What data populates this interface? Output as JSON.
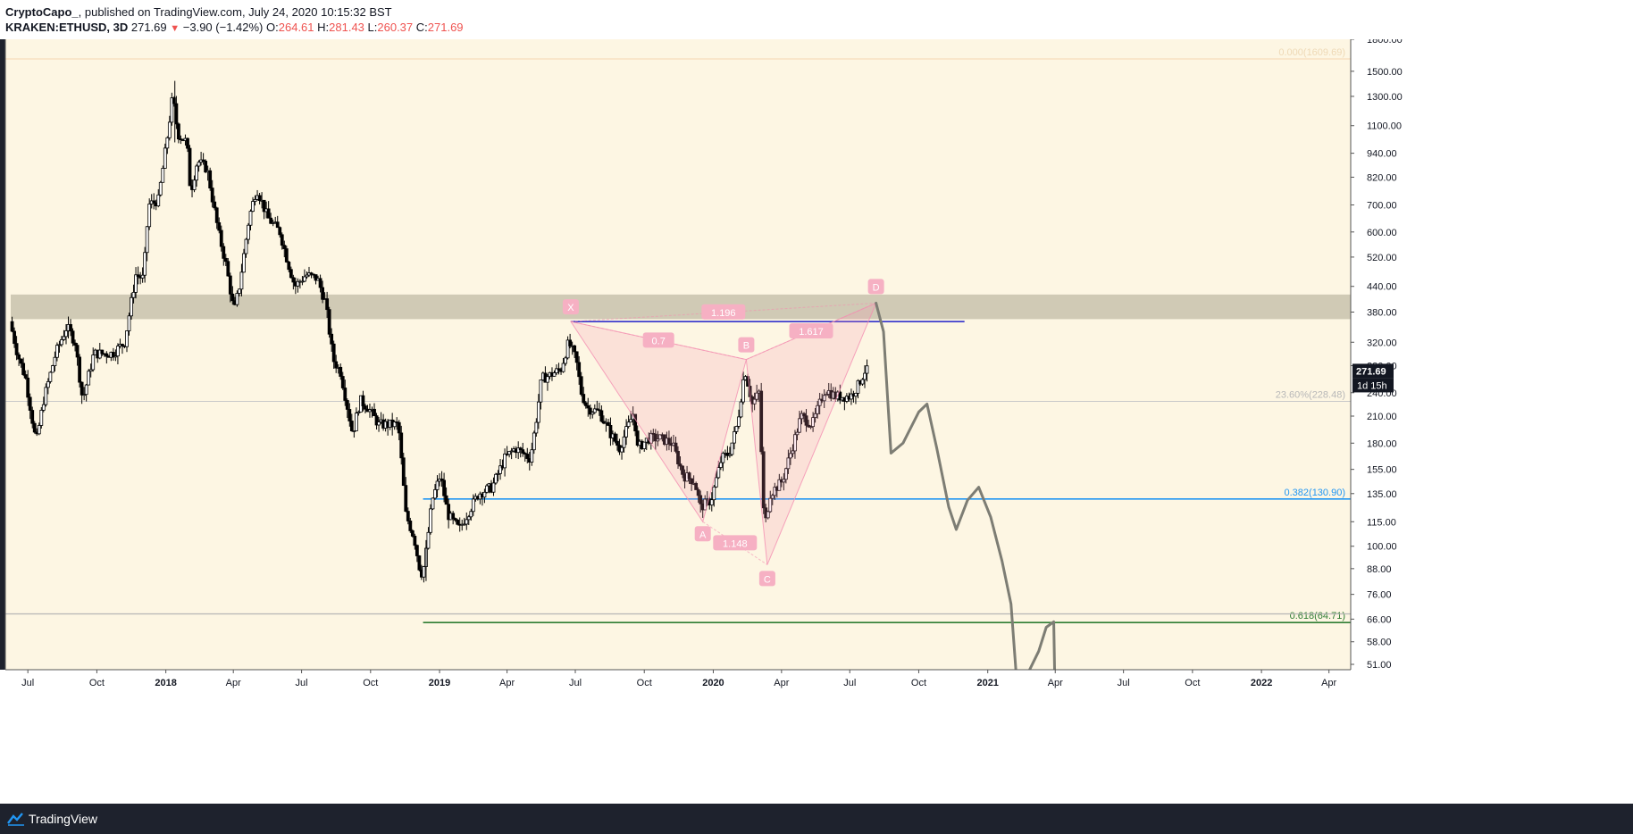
{
  "header": {
    "author": "CryptoCapo_",
    "published": "published on TradingView.com, July 24, 2020 10:15:32 BST",
    "symbol": "KRAKEN:ETHUSD, 3D",
    "last": "271.69",
    "change": "−3.90 (−1.42%)",
    "o_label": "O:",
    "o": "264.61",
    "h_label": "H:",
    "h": "281.43",
    "l_label": "L:",
    "l": "260.37",
    "c_label": "C:",
    "c": "271.69"
  },
  "footer": {
    "brand": "TradingView"
  },
  "colors": {
    "background": "#fdf6e3",
    "candle": "#000000",
    "pattern": "#f48fb1",
    "blue_line": "#1e1ec8",
    "fib_0382": "#2196f3",
    "fib_0618": "#2e7d32",
    "zone": "#c8c2ad",
    "projection": "#7d7d74"
  },
  "chart_data": {
    "type": "candlestick",
    "symbol": "KRAKEN:ETHUSD",
    "interval": "3D",
    "scale": "log",
    "price_ticks": [
      1800,
      1500,
      1300,
      1100,
      940,
      820,
      700,
      600,
      520,
      440,
      380,
      320,
      280,
      240,
      210,
      180,
      155,
      135,
      115,
      100,
      88,
      76,
      66,
      58,
      51
    ],
    "price_tick_labels": [
      "1800.00",
      "1500.00",
      "1300.00",
      "1100.00",
      "940.00",
      "820.00",
      "700.00",
      "600.00",
      "520.00",
      "440.00",
      "380.00",
      "320.00",
      "280.00",
      "240.00",
      "210.00",
      "180.00",
      "155.00",
      "135.00",
      "115.00",
      "100.00",
      "88.00",
      "76.00",
      "66.00",
      "58.00",
      "51.00"
    ],
    "time_ticks": [
      "Jul",
      "Oct",
      "2018",
      "Apr",
      "Jul",
      "Oct",
      "2019",
      "Apr",
      "Jul",
      "Oct",
      "2020",
      "Apr",
      "Jul",
      "Oct",
      "2021",
      "Apr",
      "Jul",
      "Oct",
      "2022",
      "Apr"
    ],
    "time_tick_dates": [
      "2017-07-01",
      "2017-10-01",
      "2018-01-01",
      "2018-04-01",
      "2018-07-01",
      "2018-10-01",
      "2019-01-01",
      "2019-04-01",
      "2019-07-01",
      "2019-10-01",
      "2020-01-01",
      "2020-04-01",
      "2020-07-01",
      "2020-10-01",
      "2021-01-01",
      "2021-04-01",
      "2021-07-01",
      "2021-10-01",
      "2022-01-01",
      "2022-04-01"
    ],
    "last_price": 271.69,
    "last_price_label": "271.69",
    "countdown_label": "1d 15h",
    "price_path": [
      [
        "2017-06-10",
        360
      ],
      [
        "2017-06-20",
        300
      ],
      [
        "2017-07-01",
        260
      ],
      [
        "2017-07-15",
        180
      ],
      [
        "2017-07-25",
        230
      ],
      [
        "2017-08-10",
        300
      ],
      [
        "2017-08-25",
        350
      ],
      [
        "2017-09-05",
        320
      ],
      [
        "2017-09-15",
        230
      ],
      [
        "2017-09-30",
        300
      ],
      [
        "2017-10-10",
        300
      ],
      [
        "2017-10-25",
        300
      ],
      [
        "2017-11-10",
        320
      ],
      [
        "2017-11-25",
        470
      ],
      [
        "2017-12-05",
        460
      ],
      [
        "2017-12-12",
        700
      ],
      [
        "2017-12-25",
        720
      ],
      [
        "2018-01-05",
        1000
      ],
      [
        "2018-01-13",
        1300
      ],
      [
        "2018-01-20",
        1050
      ],
      [
        "2018-02-01",
        1000
      ],
      [
        "2018-02-06",
        750
      ],
      [
        "2018-02-15",
        900
      ],
      [
        "2018-02-28",
        860
      ],
      [
        "2018-03-15",
        600
      ],
      [
        "2018-03-25",
        500
      ],
      [
        "2018-04-05",
        380
      ],
      [
        "2018-04-12",
        440
      ],
      [
        "2018-04-25",
        650
      ],
      [
        "2018-05-05",
        770
      ],
      [
        "2018-05-20",
        650
      ],
      [
        "2018-06-05",
        600
      ],
      [
        "2018-06-15",
        510
      ],
      [
        "2018-06-25",
        440
      ],
      [
        "2018-07-10",
        470
      ],
      [
        "2018-07-25",
        460
      ],
      [
        "2018-08-05",
        400
      ],
      [
        "2018-08-15",
        290
      ],
      [
        "2018-08-25",
        270
      ],
      [
        "2018-09-10",
        190
      ],
      [
        "2018-09-20",
        230
      ],
      [
        "2018-10-01",
        220
      ],
      [
        "2018-10-15",
        200
      ],
      [
        "2018-10-30",
        200
      ],
      [
        "2018-11-10",
        200
      ],
      [
        "2018-11-20",
        120
      ],
      [
        "2018-12-01",
        105
      ],
      [
        "2018-12-10",
        85
      ],
      [
        "2018-12-15",
        90
      ],
      [
        "2018-12-25",
        130
      ],
      [
        "2019-01-05",
        150
      ],
      [
        "2019-01-15",
        120
      ],
      [
        "2019-01-30",
        110
      ],
      [
        "2019-02-10",
        120
      ],
      [
        "2019-02-25",
        135
      ],
      [
        "2019-03-15",
        140
      ],
      [
        "2019-04-01",
        165
      ],
      [
        "2019-04-15",
        175
      ],
      [
        "2019-05-05",
        165
      ],
      [
        "2019-05-12",
        200
      ],
      [
        "2019-05-20",
        260
      ],
      [
        "2019-05-31",
        265
      ],
      [
        "2019-06-15",
        275
      ],
      [
        "2019-06-25",
        320
      ],
      [
        "2019-07-05",
        290
      ],
      [
        "2019-07-12",
        240
      ],
      [
        "2019-07-20",
        220
      ],
      [
        "2019-08-05",
        215
      ],
      [
        "2019-08-20",
        190
      ],
      [
        "2019-09-01",
        175
      ],
      [
        "2019-09-20",
        215
      ],
      [
        "2019-09-25",
        175
      ],
      [
        "2019-10-10",
        185
      ],
      [
        "2019-10-25",
        185
      ],
      [
        "2019-11-10",
        180
      ],
      [
        "2019-11-25",
        150
      ],
      [
        "2019-12-10",
        145
      ],
      [
        "2019-12-18",
        125
      ],
      [
        "2020-01-01",
        130
      ],
      [
        "2020-01-15",
        165
      ],
      [
        "2020-01-25",
        170
      ],
      [
        "2020-02-05",
        200
      ],
      [
        "2020-02-15",
        275
      ],
      [
        "2020-02-25",
        225
      ],
      [
        "2020-03-05",
        240
      ],
      [
        "2020-03-12",
        110
      ],
      [
        "2020-03-20",
        135
      ],
      [
        "2020-04-05",
        145
      ],
      [
        "2020-04-20",
        180
      ],
      [
        "2020-04-30",
        210
      ],
      [
        "2020-05-15",
        200
      ],
      [
        "2020-06-01",
        245
      ],
      [
        "2020-06-15",
        235
      ],
      [
        "2020-07-05",
        235
      ],
      [
        "2020-07-15",
        250
      ],
      [
        "2020-07-24",
        271.69
      ]
    ],
    "price_high": 1420,
    "price_high_date": "2018-01-13",
    "price_low": 82,
    "price_low_date": "2018-12-14",
    "harmonic_pattern": {
      "points": [
        {
          "label": "X",
          "date": "2019-06-25",
          "price": 360
        },
        {
          "label": "A",
          "date": "2019-12-18",
          "price": 115
        },
        {
          "label": "B",
          "date": "2020-02-14",
          "price": 290
        },
        {
          "label": "C",
          "date": "2020-03-13",
          "price": 90
        },
        {
          "label": "D",
          "date": "2020-08-05",
          "price": 400
        }
      ],
      "ratios": [
        {
          "label": "0.7",
          "between": [
            "X",
            "B"
          ]
        },
        {
          "label": "1.148",
          "between": [
            "A",
            "C"
          ]
        },
        {
          "label": "1.617",
          "between": [
            "B",
            "D"
          ]
        },
        {
          "label": "1.196",
          "between": [
            "X",
            "D"
          ]
        }
      ]
    },
    "zone": {
      "from": 365,
      "to": 420
    },
    "horizontal_lines": [
      {
        "price": 360,
        "start": "2019-06-25",
        "end": "2020-12-01",
        "color": "blue_line"
      }
    ],
    "fib_levels": [
      {
        "label": "0.000(1609.69)",
        "price": 1609.69,
        "start": "2017-06-01"
      },
      {
        "label": "23.60%(228.48)",
        "price": 228.48,
        "start": "2017-06-01"
      },
      {
        "label": "0.382(130.90)",
        "price": 130.9,
        "start": "2018-12-10"
      },
      {
        "label": "0.618(64.71)",
        "price": 64.71,
        "start": "2018-12-10"
      }
    ],
    "grey_line_price": 68,
    "projection": [
      [
        "2020-08-05",
        400
      ],
      [
        "2020-08-15",
        340
      ],
      [
        "2020-08-25",
        170
      ],
      [
        "2020-09-10",
        180
      ],
      [
        "2020-10-01",
        215
      ],
      [
        "2020-10-12",
        225
      ],
      [
        "2020-10-25",
        175
      ],
      [
        "2020-11-10",
        125
      ],
      [
        "2020-11-20",
        110
      ],
      [
        "2020-12-05",
        130
      ],
      [
        "2020-12-20",
        140
      ],
      [
        "2021-01-05",
        118
      ],
      [
        "2021-01-20",
        92
      ],
      [
        "2021-02-01",
        72
      ],
      [
        "2021-02-08",
        48
      ],
      [
        "2021-02-20",
        47
      ],
      [
        "2021-03-10",
        55
      ],
      [
        "2021-03-20",
        63
      ],
      [
        "2021-03-30",
        65
      ],
      [
        "2021-04-01",
        40
      ]
    ]
  }
}
